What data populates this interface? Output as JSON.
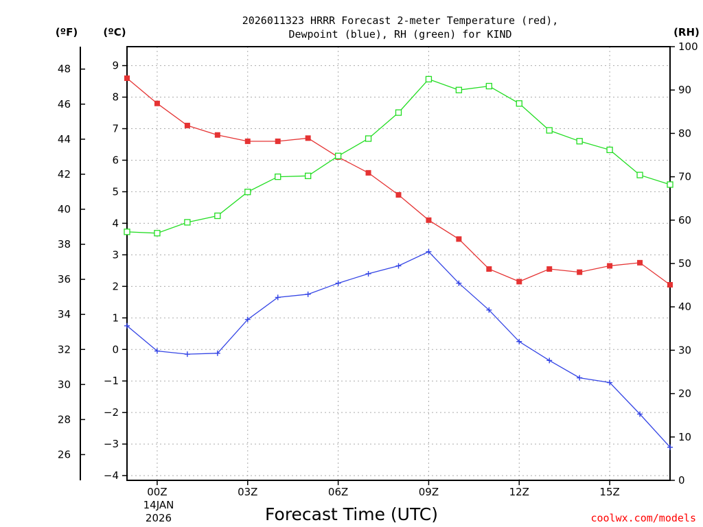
{
  "chart_data": {
    "type": "line",
    "title_line1": "2026011323 HRRR Forecast 2-meter Temperature (red),",
    "title_line2": "Dewpoint (blue), RH (green) for KIND",
    "xlabel": "Forecast Time (UTC)",
    "credit": "coolwx.com/models",
    "unit_left_f": "(ºF)",
    "unit_left_c": "(ºC)",
    "unit_right": "(RH)",
    "x_hours": [
      -1,
      0,
      1,
      2,
      3,
      4,
      5,
      6,
      7,
      8,
      9,
      10,
      11,
      12,
      13,
      14,
      15,
      16,
      17
    ],
    "x_ticks": [
      {
        "hour": 0,
        "label": "00Z"
      },
      {
        "hour": 3,
        "label": "03Z"
      },
      {
        "hour": 6,
        "label": "06Z"
      },
      {
        "hour": 9,
        "label": "09Z"
      },
      {
        "hour": 12,
        "label": "12Z"
      },
      {
        "hour": 15,
        "label": "15Z"
      }
    ],
    "date_line1": "14JAN",
    "date_line2": "2026",
    "x_range": [
      -1,
      17
    ],
    "c_range": [
      -4.15,
      9.6
    ],
    "c_ticks": [
      -4,
      -3,
      -2,
      -1,
      0,
      1,
      2,
      3,
      4,
      5,
      6,
      7,
      8,
      9
    ],
    "f_ticks": [
      26,
      28,
      30,
      32,
      34,
      36,
      38,
      40,
      42,
      44,
      46,
      48
    ],
    "rh_range": [
      0,
      100
    ],
    "rh_ticks": [
      0,
      10,
      20,
      30,
      40,
      50,
      60,
      70,
      80,
      90,
      100
    ],
    "series": [
      {
        "name": "2-meter Temperature",
        "unit": "C",
        "color": "#e53333",
        "marker": "filled-square",
        "values": [
          8.6,
          7.8,
          7.1,
          6.8,
          6.6,
          6.6,
          6.7,
          6.1,
          5.6,
          4.9,
          4.1,
          3.5,
          2.55,
          2.15,
          2.55,
          2.45,
          2.65,
          2.75,
          2.05
        ]
      },
      {
        "name": "Dewpoint",
        "unit": "C",
        "color": "#3344e5",
        "marker": "plus",
        "values": [
          0.75,
          -0.05,
          -0.15,
          -0.12,
          0.95,
          1.65,
          1.75,
          2.1,
          2.4,
          2.65,
          3.1,
          2.1,
          1.25,
          0.25,
          -0.35,
          -0.9,
          -1.05,
          -2.05,
          -3.1
        ]
      },
      {
        "name": "RH",
        "unit": "%",
        "color": "#22dd22",
        "marker": "open-square",
        "values": [
          57.3,
          57.0,
          59.5,
          61.0,
          66.5,
          70.0,
          70.2,
          74.8,
          78.8,
          84.8,
          92.5,
          90.0,
          90.9,
          86.9,
          80.7,
          78.2,
          76.2,
          70.4,
          68.2
        ]
      }
    ]
  }
}
